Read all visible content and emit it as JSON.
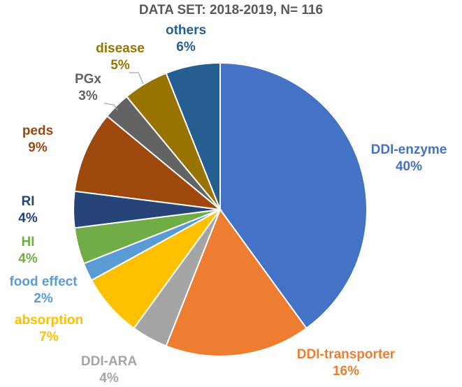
{
  "chart_data": {
    "type": "pie",
    "title": "DATA SET: 2018-2019, N= 116",
    "slices": [
      {
        "name": "DDI-enzyme",
        "pct_label": "40%",
        "value": 40,
        "color": "#4472C4"
      },
      {
        "name": "DDI-transporter",
        "pct_label": "16%",
        "value": 16,
        "color": "#ED7D31"
      },
      {
        "name": "DDI-ARA",
        "pct_label": "4%",
        "value": 4,
        "color": "#A5A5A5"
      },
      {
        "name": "absorption",
        "pct_label": "7%",
        "value": 7,
        "color": "#FFC000"
      },
      {
        "name": "food effect",
        "pct_label": "2%",
        "value": 2,
        "color": "#5B9BD5"
      },
      {
        "name": "HI",
        "pct_label": "4%",
        "value": 4,
        "color": "#70AD47"
      },
      {
        "name": "RI",
        "pct_label": "4%",
        "value": 4,
        "color": "#264478"
      },
      {
        "name": "peds",
        "pct_label": "9%",
        "value": 9,
        "color": "#9E480E"
      },
      {
        "name": "PGx",
        "pct_label": "3%",
        "value": 3,
        "color": "#636363"
      },
      {
        "name": "disease",
        "pct_label": "5%",
        "value": 5,
        "color": "#997300"
      },
      {
        "name": "others",
        "pct_label": "6%",
        "value": 6,
        "color": "#255E91"
      }
    ]
  }
}
